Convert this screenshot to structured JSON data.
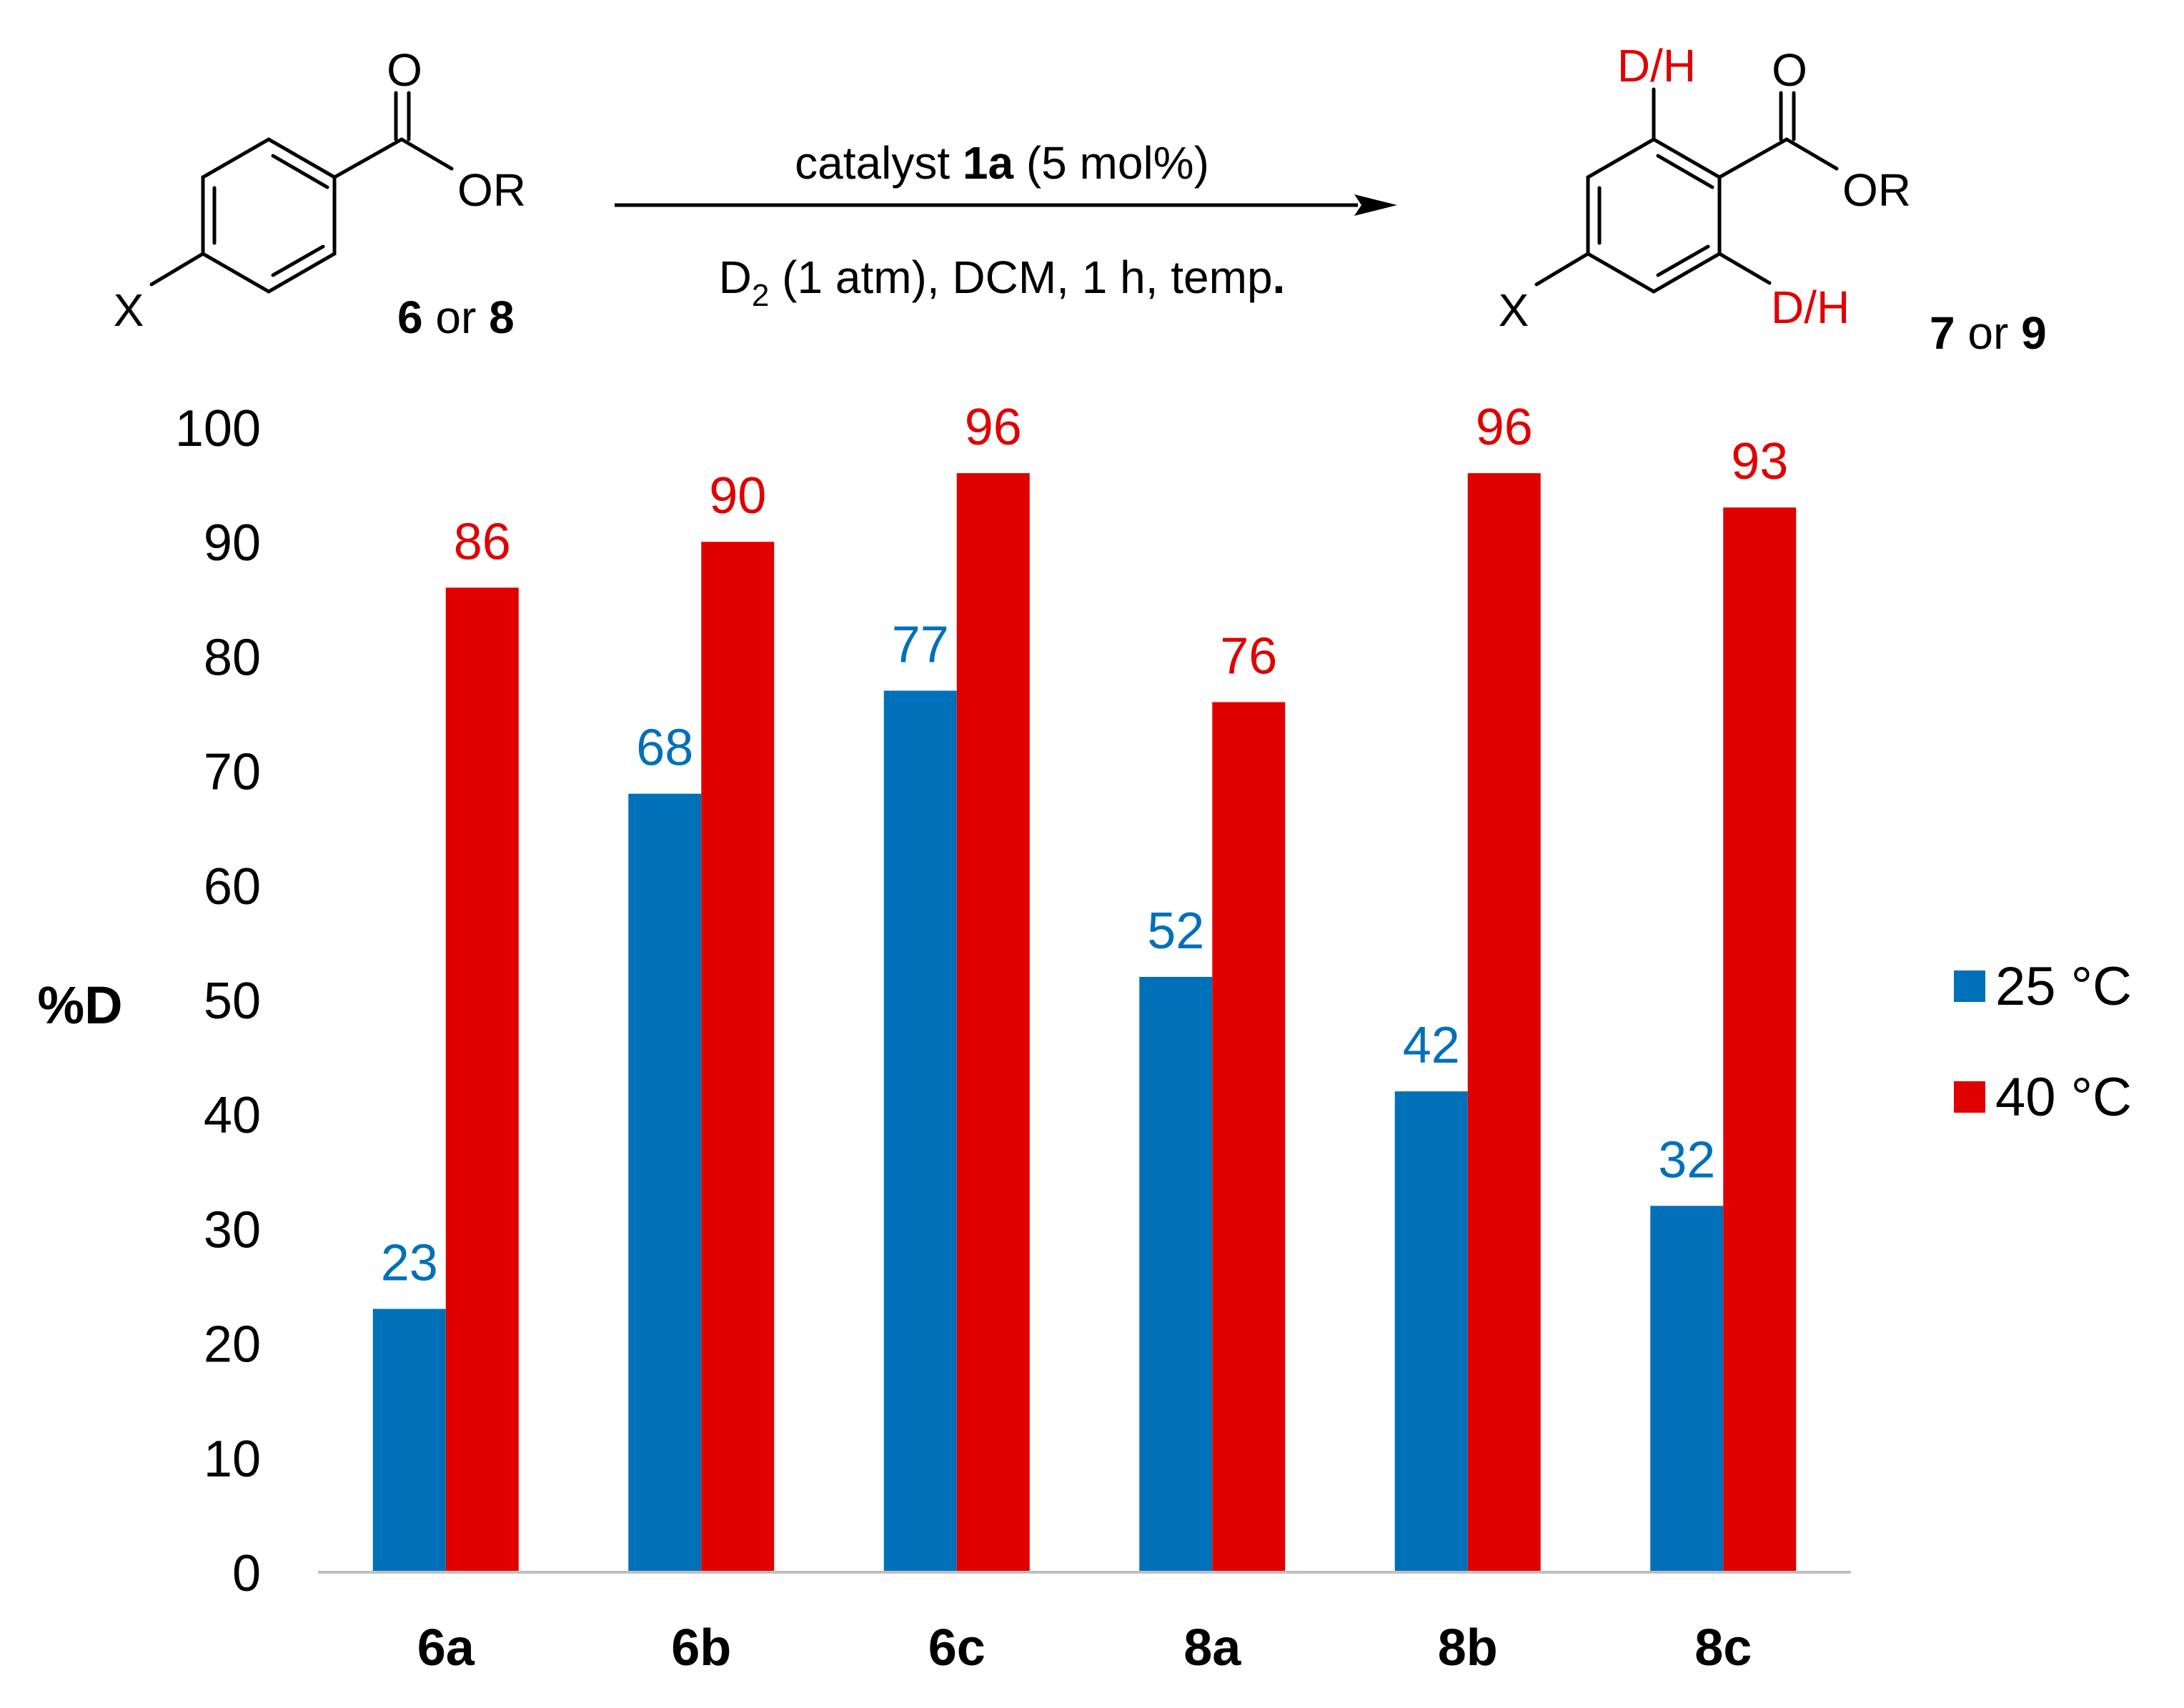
{
  "scheme": {
    "reactant": {
      "carbonyl_o": "O",
      "ester_group": "OR",
      "substituent": "X",
      "label_a": "6",
      "label_or": " or ",
      "label_b": "8"
    },
    "conditions": {
      "line1_pre": "catalyst ",
      "line1_bold": "1a",
      "line1_post": " (5 mol%)",
      "line2_d": "D",
      "line2_sub": "2",
      "line2_post": " (1 atm), DCM, 1 h, temp",
      "line2_dot": "."
    },
    "product": {
      "carbonyl_o": "O",
      "ester_group": "OR",
      "substituent": "X",
      "dh_top": "D/H",
      "dh_bottom": "D/H",
      "label_a": "7",
      "label_or": " or ",
      "label_b": "9"
    },
    "colors": {
      "isotope_label": "#e00000",
      "structure": "#000000"
    }
  },
  "chart_data": {
    "type": "bar",
    "categories": [
      "6a",
      "6b",
      "6c",
      "8a",
      "8b",
      "8c"
    ],
    "series": [
      {
        "name": "25 °C",
        "color": "#0070b8",
        "values": [
          23,
          68,
          77,
          52,
          42,
          32
        ]
      },
      {
        "name": "40 °C",
        "color": "#e00000",
        "values": [
          86,
          90,
          96,
          76,
          96,
          93
        ]
      }
    ],
    "ylabel": "%D",
    "xlabel": "",
    "ylim": [
      0,
      100
    ],
    "yticks": [
      0,
      10,
      20,
      30,
      40,
      50,
      60,
      70,
      80,
      90,
      100
    ],
    "grid": false,
    "legend_position": "right",
    "data_labels": true
  }
}
